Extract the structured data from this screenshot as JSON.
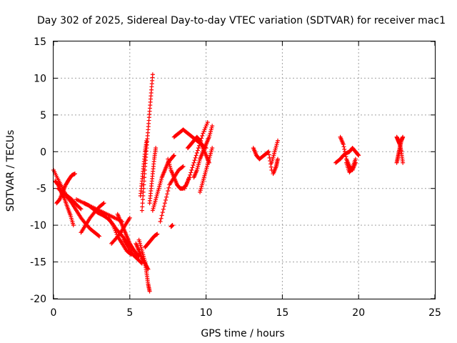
{
  "chart_data": {
    "type": "scatter",
    "title": "Day 302 of 2025, Sidereal Day-to-day VTEC variation (SDTVAR) for receiver mac1",
    "xlabel": "GPS time / hours",
    "ylabel": "SDTVAR / TECUs",
    "xlim": [
      0,
      25
    ],
    "ylim": [
      -20,
      15
    ],
    "xticks": [
      "0",
      "5",
      "10",
      "15",
      "20",
      "25"
    ],
    "yticks": [
      "15",
      "10",
      "5",
      "0",
      "-5",
      "-10",
      "-15",
      "-20"
    ],
    "grid": true,
    "marker": "+",
    "color": "#ff0000",
    "segments": [
      {
        "x": [
          0.0,
          0.3,
          0.6,
          0.9,
          1.2,
          1.5,
          1.8,
          2.1,
          2.4,
          2.7,
          3.0
        ],
        "y": [
          -2.5,
          -3.8,
          -5.0,
          -6.2,
          -7.0,
          -8.0,
          -9.0,
          -9.8,
          -10.5,
          -11.0,
          -11.5
        ]
      },
      {
        "x": [
          0.1,
          0.3,
          0.5,
          0.7,
          0.9,
          1.1,
          1.3
        ],
        "y": [
          -4.0,
          -4.5,
          -5.5,
          -6.3,
          -7.5,
          -8.6,
          -10.0
        ]
      },
      {
        "x": [
          0.2,
          0.4,
          0.6,
          0.8,
          1.0,
          1.2,
          1.4
        ],
        "y": [
          -7.0,
          -6.5,
          -5.5,
          -4.5,
          -3.8,
          -3.2,
          -3.0
        ]
      },
      {
        "x": [
          0.3,
          0.6,
          0.9,
          1.2,
          1.5,
          1.8
        ],
        "y": [
          -5.0,
          -5.5,
          -6.0,
          -6.5,
          -7.2,
          -7.8
        ]
      },
      {
        "x": [
          1.5,
          2.0,
          2.5,
          3.0,
          3.5,
          4.0,
          4.5
        ],
        "y": [
          -6.5,
          -7.0,
          -7.5,
          -8.0,
          -8.5,
          -9.0,
          -9.5
        ]
      },
      {
        "x": [
          1.8,
          2.1,
          2.4,
          2.7,
          3.0,
          3.3
        ],
        "y": [
          -11.0,
          -10.0,
          -9.0,
          -8.2,
          -7.5,
          -7.0
        ]
      },
      {
        "x": [
          2.0,
          2.3,
          2.6,
          2.9,
          3.2,
          3.5,
          3.8,
          4.1,
          4.4,
          4.7,
          5.0
        ],
        "y": [
          -7.0,
          -7.3,
          -7.8,
          -8.3,
          -8.6,
          -9.0,
          -9.6,
          -10.5,
          -11.2,
          -12.0,
          -12.8
        ]
      },
      {
        "x": [
          3.6,
          3.9,
          4.2,
          4.5,
          4.8,
          5.1
        ],
        "y": [
          -9.0,
          -10.0,
          -11.5,
          -12.5,
          -13.5,
          -14.0
        ]
      },
      {
        "x": [
          3.8,
          4.1,
          4.4,
          4.7,
          5.0
        ],
        "y": [
          -12.5,
          -11.8,
          -11.0,
          -10.0,
          -9.0
        ]
      },
      {
        "x": [
          4.2,
          4.4,
          4.6,
          4.8,
          5.0,
          5.2,
          5.4,
          5.6
        ],
        "y": [
          -8.5,
          -9.5,
          -10.5,
          -11.5,
          -12.5,
          -13.2,
          -13.8,
          -14.2
        ]
      },
      {
        "x": [
          4.6,
          4.9,
          5.2,
          5.5,
          5.8
        ],
        "y": [
          -12.0,
          -13.0,
          -14.0,
          -14.6,
          -15.2
        ]
      },
      {
        "x": [
          5.4,
          5.6,
          5.8,
          6.0,
          6.2
        ],
        "y": [
          -12.5,
          -13.5,
          -14.5,
          -15.2,
          -16.0
        ]
      },
      {
        "x": [
          5.6,
          5.8,
          6.0,
          6.1,
          6.2,
          6.3
        ],
        "y": [
          -12.0,
          -13.5,
          -15.0,
          -16.5,
          -18.0,
          -19.0
        ]
      },
      {
        "x": [
          6.0,
          6.2,
          6.4,
          6.6,
          6.8
        ],
        "y": [
          -13.0,
          -12.5,
          -12.0,
          -11.5,
          -11.2
        ]
      },
      {
        "x": [
          5.8,
          5.9,
          6.0,
          6.1,
          6.2,
          6.3,
          6.4,
          6.5
        ],
        "y": [
          -8.0,
          -5.0,
          -2.0,
          0.5,
          3.0,
          5.5,
          8.0,
          10.5
        ]
      },
      {
        "x": [
          5.7,
          5.8,
          5.9,
          6.0,
          6.1
        ],
        "y": [
          -6.0,
          -4.0,
          -2.0,
          0.0,
          1.5
        ]
      },
      {
        "x": [
          6.3,
          6.4,
          6.5,
          6.6,
          6.7
        ],
        "y": [
          -7.0,
          -5.0,
          -3.0,
          -1.0,
          0.5
        ]
      },
      {
        "x": [
          6.5,
          6.7,
          6.9,
          7.1,
          7.3,
          7.5,
          7.7,
          7.9
        ],
        "y": [
          -8.0,
          -6.5,
          -5.0,
          -3.5,
          -2.5,
          -1.5,
          -1.0,
          -0.5
        ]
      },
      {
        "x": [
          7.0,
          7.3,
          7.6,
          7.9,
          8.2,
          8.5
        ],
        "y": [
          -9.5,
          -7.0,
          -4.5,
          -3.5,
          -2.5,
          -2.0
        ]
      },
      {
        "x": [
          7.5,
          7.7,
          7.9,
          8.1,
          8.3,
          8.5,
          8.7,
          8.9
        ],
        "y": [
          -1.0,
          -2.5,
          -3.5,
          -4.5,
          -5.0,
          -5.0,
          -4.5,
          -3.5
        ]
      },
      {
        "x": [
          7.7,
          7.8
        ],
        "y": [
          -10.2,
          -10.0
        ]
      },
      {
        "x": [
          7.9,
          8.2,
          8.5,
          8.8,
          9.1,
          9.4,
          9.7,
          10.0
        ],
        "y": [
          2.0,
          2.5,
          3.0,
          2.5,
          2.0,
          1.5,
          1.0,
          0.5
        ]
      },
      {
        "x": [
          8.6,
          8.9,
          9.2,
          9.5,
          9.8,
          10.1
        ],
        "y": [
          -5.0,
          -3.5,
          -1.5,
          0.5,
          2.5,
          4.0
        ]
      },
      {
        "x": [
          8.8,
          9.0,
          9.2,
          9.4,
          9.6,
          9.8,
          10.0,
          10.2
        ],
        "y": [
          0.5,
          1.0,
          1.5,
          2.0,
          1.5,
          0.5,
          -0.5,
          -1.5
        ]
      },
      {
        "x": [
          9.2,
          9.4,
          9.6,
          9.8,
          10.0,
          10.2,
          10.4
        ],
        "y": [
          -3.5,
          -2.5,
          -1.0,
          0.0,
          1.0,
          2.0,
          3.5
        ]
      },
      {
        "x": [
          9.6,
          9.8,
          10.0,
          10.2,
          10.4
        ],
        "y": [
          -5.5,
          -4.0,
          -2.5,
          -1.0,
          0.5
        ]
      },
      {
        "x": [
          13.1,
          13.3,
          13.5,
          13.8,
          14.1,
          14.3
        ],
        "y": [
          0.5,
          -0.5,
          -1.0,
          -0.5,
          0.0,
          -2.5
        ]
      },
      {
        "x": [
          14.3,
          14.5,
          14.7
        ],
        "y": [
          -1.5,
          0.0,
          1.5
        ]
      },
      {
        "x": [
          14.4,
          14.6,
          14.7
        ],
        "y": [
          -3.0,
          -2.0,
          -1.0
        ]
      },
      {
        "x": [
          18.5,
          18.8,
          19.0,
          19.2,
          19.4,
          19.6,
          19.8,
          20.0
        ],
        "y": [
          -1.5,
          -1.0,
          -0.5,
          -0.2,
          0.0,
          0.5,
          0.0,
          -0.5
        ]
      },
      {
        "x": [
          18.8,
          19.0,
          19.2,
          19.4,
          19.6,
          19.8
        ],
        "y": [
          2.0,
          1.0,
          -1.0,
          -2.0,
          -2.5,
          -1.5
        ]
      },
      {
        "x": [
          19.2,
          19.4,
          19.6,
          19.8
        ],
        "y": [
          -1.5,
          -2.8,
          -2.2,
          -1.0
        ]
      },
      {
        "x": [
          22.5,
          22.6,
          22.7,
          22.8,
          22.9
        ],
        "y": [
          2.0,
          1.5,
          1.0,
          0.0,
          -1.5
        ]
      },
      {
        "x": [
          22.5,
          22.6,
          22.7,
          22.8,
          22.9
        ],
        "y": [
          -1.5,
          -0.5,
          0.5,
          1.5,
          2.0
        ]
      }
    ]
  }
}
